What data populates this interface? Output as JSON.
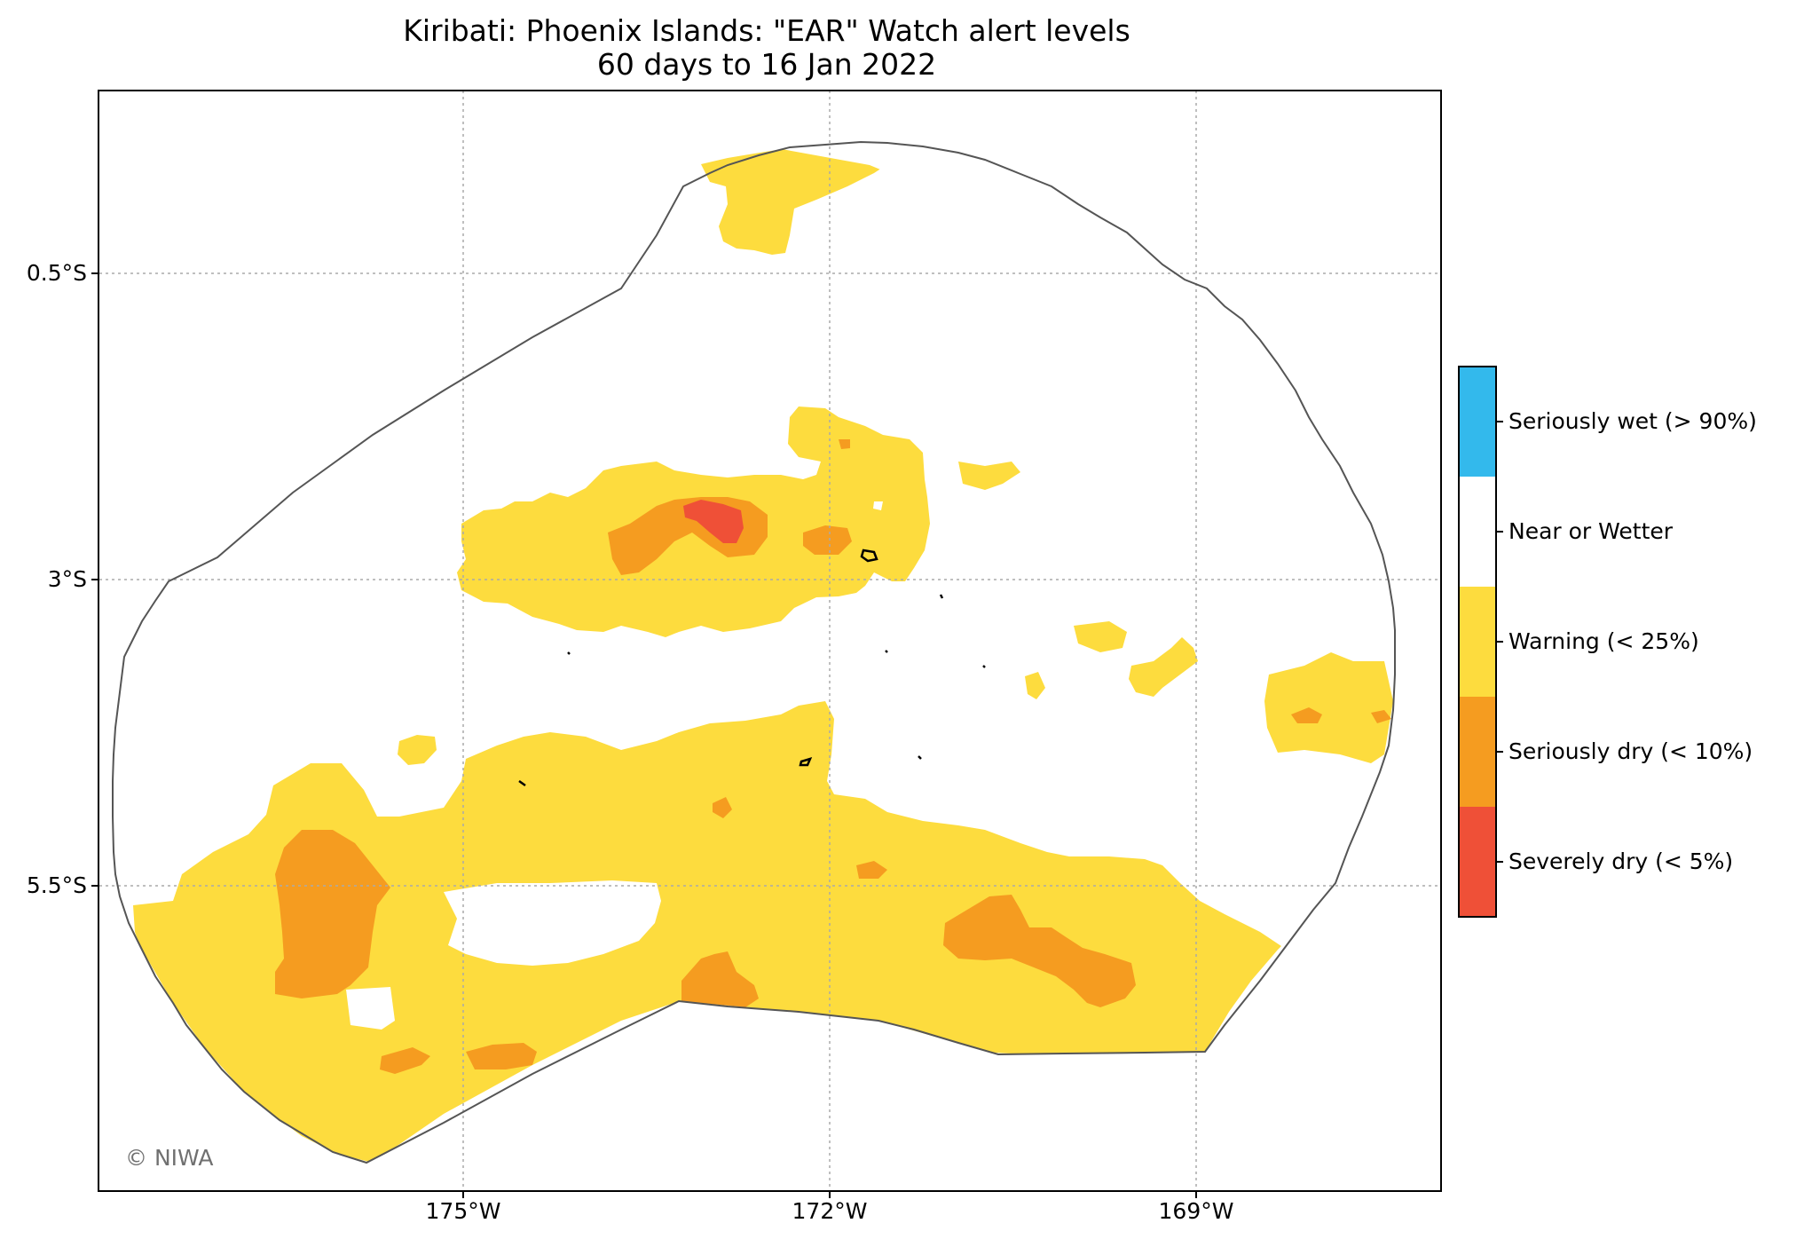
{
  "title": "Kiribati: Phoenix Islands: \"EAR\" Watch alert levels",
  "subtitle": "60 days to 16 Jan 2022",
  "credit": "© NIWA",
  "axes": {
    "x_ticks": [
      "175°W",
      "172°W",
      "169°W"
    ],
    "y_ticks": [
      "0.5°S",
      "3°S",
      "5.5°S"
    ],
    "grid": true
  },
  "legend": [
    {
      "label": "Seriously wet (> 90%)",
      "color": "#33b9ec"
    },
    {
      "label": "Near or Wetter",
      "color": "#ffffff"
    },
    {
      "label": "Warning (< 25%)",
      "color": "#fddc3e"
    },
    {
      "label": "Seriously dry (< 10%)",
      "color": "#f59c20"
    },
    {
      "label": "Severely dry (< 5%)",
      "color": "#ef5037"
    }
  ],
  "colors": {
    "warning": "#fddc3e",
    "seriously_dry": "#f59c20",
    "severely_dry": "#ef5037",
    "seriously_wet": "#33b9ec",
    "boundary": "#555555",
    "grid": "#aaaaaa"
  }
}
